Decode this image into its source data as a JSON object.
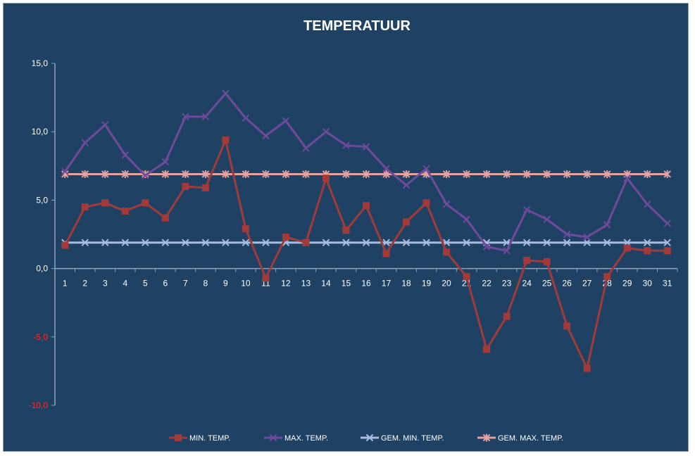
{
  "chart_data": {
    "type": "line",
    "title": "TEMPERATUUR",
    "xlabel": "",
    "ylabel": "",
    "categories": [
      "1",
      "2",
      "3",
      "4",
      "5",
      "6",
      "7",
      "8",
      "9",
      "10",
      "11",
      "12",
      "13",
      "14",
      "15",
      "16",
      "17",
      "18",
      "19",
      "20",
      "21",
      "22",
      "23",
      "24",
      "25",
      "26",
      "27",
      "28",
      "29",
      "30",
      "31"
    ],
    "ylim": [
      -10,
      15
    ],
    "y_ticks": [
      "15,0",
      "10,0",
      "5,0",
      "0,0",
      "-5,0",
      "-10,0"
    ],
    "y_tick_values": [
      15,
      10,
      5,
      0,
      -5,
      -10
    ],
    "grid": false,
    "legend_position": "bottom",
    "series": [
      {
        "name": "MIN. TEMP.",
        "color": "#a33a3a",
        "marker": "square",
        "values": [
          1.7,
          4.5,
          4.8,
          4.2,
          4.8,
          3.7,
          6.0,
          5.9,
          9.4,
          2.9,
          -0.7,
          2.3,
          1.9,
          6.6,
          2.8,
          4.6,
          1.1,
          3.4,
          4.8,
          1.2,
          -0.6,
          -5.9,
          -3.5,
          0.6,
          0.5,
          -4.2,
          -7.3,
          -0.6,
          1.5,
          1.3,
          1.3
        ]
      },
      {
        "name": "MAX. TEMP.",
        "color": "#6e4a9a",
        "marker": "x",
        "values": [
          7.1,
          9.2,
          10.5,
          8.3,
          6.8,
          7.8,
          11.1,
          11.1,
          12.8,
          11.0,
          9.7,
          10.8,
          8.8,
          10.0,
          9.0,
          8.9,
          7.3,
          6.1,
          7.3,
          4.7,
          3.6,
          1.6,
          1.3,
          4.3,
          3.6,
          2.5,
          2.3,
          3.2,
          6.6,
          4.7,
          3.3
        ]
      },
      {
        "name": "GEM. MIN. TEMP.",
        "color": "#a9bde0",
        "marker": "x",
        "values": [
          1.9,
          1.9,
          1.9,
          1.9,
          1.9,
          1.9,
          1.9,
          1.9,
          1.9,
          1.9,
          1.9,
          1.9,
          1.9,
          1.9,
          1.9,
          1.9,
          1.9,
          1.9,
          1.9,
          1.9,
          1.9,
          1.9,
          1.9,
          1.9,
          1.9,
          1.9,
          1.9,
          1.9,
          1.9,
          1.9,
          1.9
        ]
      },
      {
        "name": "GEM. MAX. TEMP.",
        "color": "#e3a3a3",
        "marker": "star",
        "values": [
          6.9,
          6.9,
          6.9,
          6.9,
          6.9,
          6.9,
          6.9,
          6.9,
          6.9,
          6.9,
          6.9,
          6.9,
          6.9,
          6.9,
          6.9,
          6.9,
          6.9,
          6.9,
          6.9,
          6.9,
          6.9,
          6.9,
          6.9,
          6.9,
          6.9,
          6.9,
          6.9,
          6.9,
          6.9,
          6.9,
          6.9
        ]
      }
    ]
  }
}
